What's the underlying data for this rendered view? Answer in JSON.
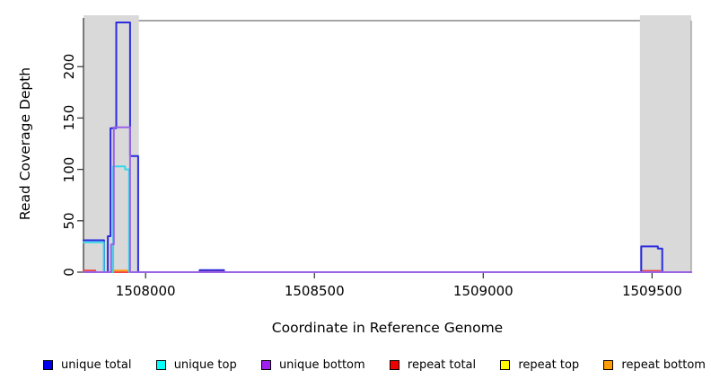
{
  "chart_data": {
    "type": "line",
    "title": "",
    "xlabel": "Coordinate in Reference Genome",
    "ylabel": "Read Coverage Depth",
    "xlim": [
      1507816,
      1509616
    ],
    "ylim": [
      0,
      250
    ],
    "x_ticks": [
      "1508000",
      "1508500",
      "1509000",
      "1509500"
    ],
    "x_tick_values": [
      1508000,
      1508500,
      1509000,
      1509500
    ],
    "y_ticks": [
      "0",
      "50",
      "100",
      "150",
      "200"
    ],
    "y_tick_values": [
      0,
      50,
      100,
      150,
      200
    ],
    "grid": "off",
    "legend_position": "bottom",
    "shaded_region_color": "#d9d9d9",
    "shaded_regions": [
      {
        "name": "repeat-region-left",
        "x_start": 1507816,
        "x_end": 1507980
      },
      {
        "name": "repeat-region-right",
        "x_start": 1509464,
        "x_end": 1509616
      }
    ],
    "series": [
      {
        "name": "repeat top",
        "color": "#f0e422",
        "points": [
          [
            1507816,
            0
          ],
          [
            1509616,
            0
          ]
        ]
      },
      {
        "name": "repeat total",
        "color": "#ee4545",
        "points": [
          [
            1507816,
            1.5
          ],
          [
            1507851,
            1.5
          ],
          [
            1507851,
            0
          ],
          [
            1508164,
            0
          ],
          [
            1508164,
            1
          ],
          [
            1508228,
            1
          ],
          [
            1508228,
            0
          ],
          [
            1509472,
            0
          ],
          [
            1509472,
            1.2
          ],
          [
            1509524,
            1.2
          ],
          [
            1509524,
            0
          ],
          [
            1509616,
            0
          ]
        ]
      },
      {
        "name": "repeat bottom",
        "color": "#ff9d1e",
        "points": [
          [
            1507816,
            0
          ],
          [
            1507899,
            0
          ],
          [
            1507899,
            1.5
          ],
          [
            1507952,
            1.5
          ],
          [
            1507952,
            0
          ],
          [
            1509616,
            0
          ]
        ]
      },
      {
        "name": "unique total",
        "color": "#2b2be0",
        "points": [
          [
            1507816,
            31
          ],
          [
            1507877,
            31
          ],
          [
            1507877,
            0
          ],
          [
            1507888,
            0
          ],
          [
            1507888,
            35
          ],
          [
            1507896,
            35
          ],
          [
            1507896,
            140
          ],
          [
            1507913,
            140
          ],
          [
            1507913,
            243
          ],
          [
            1507954,
            243
          ],
          [
            1507954,
            113
          ],
          [
            1507978,
            113
          ],
          [
            1507978,
            0
          ],
          [
            1508160,
            0
          ],
          [
            1508160,
            2
          ],
          [
            1508232,
            2
          ],
          [
            1508232,
            0
          ],
          [
            1509468,
            0
          ],
          [
            1509468,
            25
          ],
          [
            1509517,
            25
          ],
          [
            1509517,
            23
          ],
          [
            1509530,
            23
          ],
          [
            1509530,
            0
          ],
          [
            1509616,
            0
          ]
        ]
      },
      {
        "name": "unique top",
        "color": "#35d8e8",
        "points": [
          [
            1507816,
            29
          ],
          [
            1507876,
            29
          ],
          [
            1507876,
            0
          ],
          [
            1507904,
            0
          ],
          [
            1507904,
            103
          ],
          [
            1507939,
            103
          ],
          [
            1507939,
            100
          ],
          [
            1507951,
            100
          ],
          [
            1507951,
            0
          ],
          [
            1509616,
            0
          ]
        ]
      },
      {
        "name": "unique bottom",
        "color": "#9a63e8",
        "points": [
          [
            1507816,
            0
          ],
          [
            1507898,
            0
          ],
          [
            1507898,
            27
          ],
          [
            1507906,
            27
          ],
          [
            1507906,
            141
          ],
          [
            1507954,
            141
          ],
          [
            1507954,
            0
          ],
          [
            1509616,
            0
          ]
        ]
      }
    ],
    "legend": [
      {
        "label": "unique total",
        "color": "#0000ee"
      },
      {
        "label": "unique top",
        "color": "#00ffff"
      },
      {
        "label": "unique bottom",
        "color": "#a020f0"
      },
      {
        "label": "repeat total",
        "color": "#ee0000"
      },
      {
        "label": "repeat top",
        "color": "#ffff00"
      },
      {
        "label": "repeat bottom",
        "color": "#ff9d00"
      }
    ]
  }
}
